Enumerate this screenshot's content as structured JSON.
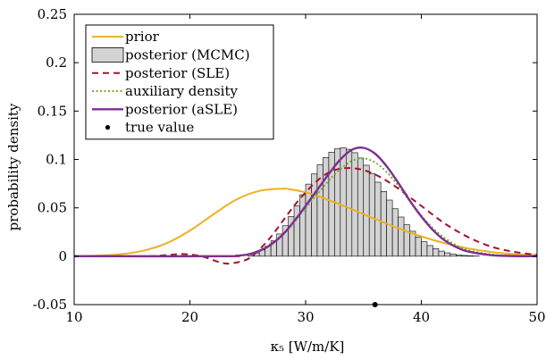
{
  "chart_data": {
    "type": "line",
    "xlabel": "κ₅ [W/m/K]",
    "ylabel": "probability density",
    "xlim": [
      10,
      50
    ],
    "ylim": [
      -0.05,
      0.25
    ],
    "xticks": [
      10,
      20,
      30,
      40,
      50
    ],
    "xtick_labels": [
      "10",
      "20",
      "30",
      "40",
      "50"
    ],
    "yticks": [
      -0.05,
      0,
      0.05,
      0.1,
      0.15,
      0.2,
      0.25
    ],
    "ytick_labels": [
      "-0.05",
      "0",
      "0.05",
      "0.1",
      "0.15",
      "0.2",
      "0.25"
    ],
    "grid": false,
    "legend_placement": "top-left",
    "colors": {
      "prior": "#EDB120",
      "mcmc_fill": "#d3d3d3",
      "sle": "#A2142F",
      "auxiliary": "#77AC30",
      "asle": "#7E2F8E",
      "true_value": "#000000"
    },
    "series": [
      {
        "name": "prior",
        "style": "solid",
        "x": [
          10,
          12,
          14,
          16,
          18,
          20,
          22,
          24,
          26,
          28,
          28.5,
          30,
          32,
          34,
          36,
          38,
          40,
          42,
          44,
          46,
          48,
          50
        ],
        "y": [
          0.0001,
          0.0006,
          0.002,
          0.0058,
          0.0135,
          0.0265,
          0.043,
          0.0585,
          0.0675,
          0.0698,
          0.0695,
          0.066,
          0.058,
          0.0485,
          0.0385,
          0.029,
          0.0205,
          0.0135,
          0.0082,
          0.0045,
          0.0022,
          0.001
        ]
      },
      {
        "name": "posterior (MCMC)",
        "style": "histogram",
        "bin_edges_start": 25.0,
        "bin_width": 0.5,
        "values": [
          0.0015,
          0.0035,
          0.0065,
          0.0105,
          0.016,
          0.023,
          0.0315,
          0.041,
          0.052,
          0.0635,
          0.0745,
          0.085,
          0.0945,
          0.102,
          0.1075,
          0.111,
          0.112,
          0.1105,
          0.107,
          0.1015,
          0.094,
          0.0855,
          0.0765,
          0.067,
          0.058,
          0.049,
          0.0405,
          0.0325,
          0.0258,
          0.0198,
          0.015,
          0.011,
          0.0078,
          0.0053,
          0.0035,
          0.0022,
          0.0013,
          0.0008,
          0.0004,
          0.0002
        ]
      },
      {
        "name": "posterior (SLE)",
        "style": "dashed",
        "x": [
          10,
          16,
          18,
          19.5,
          21,
          22.5,
          23.5,
          25,
          26,
          27,
          28,
          29,
          30,
          31,
          32,
          33,
          34,
          35,
          36,
          37,
          38,
          39,
          40,
          42,
          44,
          46,
          48,
          50
        ],
        "y": [
          0,
          0,
          0.0012,
          0.0022,
          0,
          -0.006,
          -0.0075,
          -0.003,
          0.007,
          0.02,
          0.036,
          0.052,
          0.066,
          0.078,
          0.0865,
          0.0905,
          0.091,
          0.089,
          0.0845,
          0.078,
          0.07,
          0.061,
          0.052,
          0.034,
          0.02,
          0.01,
          0.0045,
          0.0015
        ]
      },
      {
        "name": "auxiliary density",
        "style": "dotted",
        "x": [
          10,
          22,
          24,
          25,
          26,
          27,
          28,
          29,
          30,
          31,
          32,
          33,
          34,
          35,
          36,
          37,
          38,
          39,
          40,
          41,
          42,
          43,
          44,
          46,
          48,
          50
        ],
        "y": [
          0,
          0,
          0.0005,
          0.002,
          0.006,
          0.013,
          0.022,
          0.035,
          0.05,
          0.064,
          0.078,
          0.09,
          0.0985,
          0.101,
          0.097,
          0.087,
          0.073,
          0.057,
          0.042,
          0.029,
          0.019,
          0.0115,
          0.0065,
          0.0018,
          0.0004,
          0
        ]
      },
      {
        "name": "posterior (aSLE)",
        "style": "solid",
        "x": [
          10,
          23,
          24,
          25,
          26,
          27,
          28,
          29,
          30,
          31,
          32,
          33,
          34,
          35,
          36,
          37,
          38,
          39,
          40,
          41,
          42,
          43,
          44,
          46,
          48,
          50
        ],
        "y": [
          0,
          0,
          0.0005,
          0.0018,
          0.0055,
          0.012,
          0.022,
          0.036,
          0.052,
          0.0685,
          0.085,
          0.1,
          0.11,
          0.112,
          0.106,
          0.093,
          0.076,
          0.0575,
          0.041,
          0.027,
          0.0165,
          0.0095,
          0.005,
          0.0012,
          0.0002,
          0
        ]
      }
    ],
    "true_value": {
      "name": "true value",
      "x": 36,
      "y": -0.05
    },
    "legend": [
      {
        "key": "prior",
        "label": "prior"
      },
      {
        "key": "mcmc",
        "label": "posterior (MCMC)"
      },
      {
        "key": "sle",
        "label": "posterior (SLE)"
      },
      {
        "key": "aux",
        "label": "auxiliary density"
      },
      {
        "key": "asle",
        "label": "posterior (aSLE)"
      },
      {
        "key": "true",
        "label": "true value"
      }
    ]
  }
}
